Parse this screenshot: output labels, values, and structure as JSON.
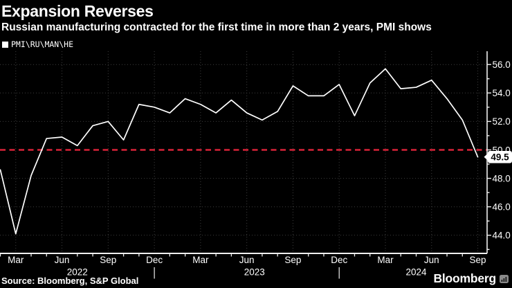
{
  "colors": {
    "background": "#000000",
    "text": "#ffffff",
    "grid": "#3f3f3f",
    "axis": "#f0f0f0",
    "series": "#ffffff",
    "baseline": "#d92339",
    "badge_bg": "#ffffff",
    "badge_text": "#000000",
    "brand_icon": "#8a8a8a"
  },
  "chart_data": {
    "type": "line",
    "title": "Expansion Reverses",
    "subtitle": "Russian manufacturing contracted for the first time in more than 2 years, PMI shows",
    "legend_label": "PMI\\RU\\MAN\\HE",
    "x": [
      "Feb 2022",
      "Mar 2022",
      "Apr 2022",
      "May 2022",
      "Jun 2022",
      "Jul 2022",
      "Aug 2022",
      "Sep 2022",
      "Oct 2022",
      "Nov 2022",
      "Dec 2022",
      "Jan 2023",
      "Feb 2023",
      "Mar 2023",
      "Apr 2023",
      "May 2023",
      "Jun 2023",
      "Jul 2023",
      "Aug 2023",
      "Sep 2023",
      "Oct 2023",
      "Nov 2023",
      "Dec 2023",
      "Jan 2024",
      "Feb 2024",
      "Mar 2024",
      "Apr 2024",
      "May 2024",
      "Jun 2024",
      "Jul 2024",
      "Aug 2024",
      "Sep 2024"
    ],
    "values": [
      48.6,
      44.1,
      48.2,
      50.8,
      50.9,
      50.3,
      51.7,
      52.0,
      50.7,
      53.2,
      53.0,
      52.6,
      53.6,
      53.2,
      52.6,
      53.5,
      52.6,
      52.1,
      52.7,
      54.5,
      53.8,
      53.8,
      54.6,
      52.4,
      54.7,
      55.7,
      54.3,
      54.4,
      54.9,
      53.6,
      52.1,
      49.5
    ],
    "series_name": "PMI\\RU\\MAN\\HE",
    "baseline_value": 50,
    "last_value_label": "49.5",
    "y_ticks": [
      56,
      54,
      52,
      50,
      48,
      46,
      44
    ],
    "y_tick_labels": [
      "56.0",
      "54.0",
      "52.0",
      "50.0",
      "48.0",
      "46.0",
      "44.0"
    ],
    "x_tick_months": [
      "Mar",
      "Jun",
      "Sep",
      "Dec"
    ],
    "years": [
      "2022",
      "2023",
      "2024"
    ],
    "ylim": [
      42.7,
      56.9
    ],
    "grid": "dotted",
    "legend_position": "top-left"
  },
  "footer": {
    "source": "Source: Bloomberg, S&P Global",
    "brand": "Bloomberg"
  }
}
